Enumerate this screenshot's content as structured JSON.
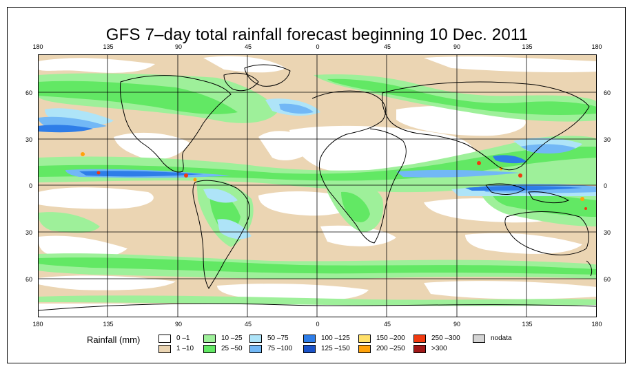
{
  "title": "GFS 7–day total rainfall forecast beginning 10 Dec. 2011",
  "axes": {
    "x_ticks": [
      "180",
      "135",
      "90",
      "45",
      "0",
      "45",
      "90",
      "135",
      "180"
    ],
    "y_ticks": [
      "60",
      "30",
      "0",
      "30",
      "60"
    ]
  },
  "legend": {
    "title": "Rainfall (mm)",
    "items": [
      {
        "label": "0 –1",
        "color": "#ffffff"
      },
      {
        "label": "1 –10",
        "color": "#ebd5b3"
      },
      {
        "label": "10 –25",
        "color": "#9ef09a"
      },
      {
        "label": "25 –50",
        "color": "#62e864"
      },
      {
        "label": "50 –75",
        "color": "#aee4f8"
      },
      {
        "label": "75 –100",
        "color": "#72b8f6"
      },
      {
        "label": "100 –125",
        "color": "#2e7de8"
      },
      {
        "label": "125 –150",
        "color": "#1a52c8"
      },
      {
        "label": "150 –200",
        "color": "#ffe06a"
      },
      {
        "label": "200 –250",
        "color": "#ffa20a"
      },
      {
        "label": "250 –300",
        "color": "#f03a10"
      },
      {
        ">300_label": "",
        "label": ">300",
        "color": "#a01818"
      },
      {
        "label": "nodata",
        "color": "#d4d4d4"
      }
    ]
  },
  "colors": {
    "dry": "#ffffff",
    "light": "#ebd5b3",
    "green_light": "#9ef09a",
    "green": "#62e864",
    "blue_light": "#aee4f8",
    "blue": "#72b8f6",
    "blue_dark": "#2e7de8",
    "orange": "#ffa20a",
    "red": "#f03a10",
    "grid": "#000000"
  }
}
